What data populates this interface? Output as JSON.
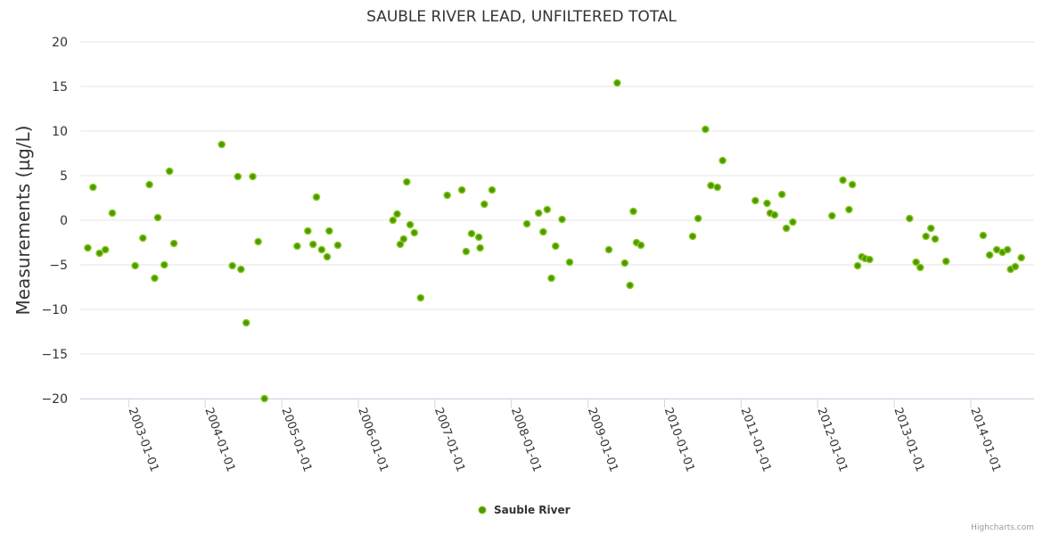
{
  "chart_data": {
    "type": "scatter",
    "title": "SAUBLE RIVER LEAD, UNFILTERED TOTAL",
    "ylabel": "Measurements (µg/L)",
    "xlabel": "",
    "ylim": [
      -20,
      20
    ],
    "yticks": [
      20,
      15,
      10,
      5,
      0,
      -5,
      -10,
      -15,
      -20
    ],
    "ytick_labels": [
      "20",
      "15",
      "10",
      "5",
      "0",
      "−5",
      "−10",
      "−15",
      "−20"
    ],
    "xlim": [
      "2002-05-15",
      "2014-10-30"
    ],
    "xticks": [
      "2003-01-01",
      "2004-01-01",
      "2005-01-01",
      "2006-01-01",
      "2007-01-01",
      "2008-01-01",
      "2009-01-01",
      "2010-01-01",
      "2011-01-01",
      "2012-01-01",
      "2013-01-01",
      "2014-01-01"
    ],
    "grid": true,
    "legend_position": "bottom-center",
    "marker_color": "#4d9900",
    "marker_stroke": "#8ac926",
    "series": [
      {
        "name": "Sauble River",
        "points": [
          {
            "x": "2002-06-20",
            "y": -3.1
          },
          {
            "x": "2002-07-15",
            "y": 3.7
          },
          {
            "x": "2002-08-15",
            "y": -3.7
          },
          {
            "x": "2002-09-12",
            "y": -3.3
          },
          {
            "x": "2002-10-15",
            "y": 0.8
          },
          {
            "x": "2003-02-01",
            "y": -5.1
          },
          {
            "x": "2003-03-10",
            "y": -2.0
          },
          {
            "x": "2003-04-10",
            "y": 4.0
          },
          {
            "x": "2003-05-05",
            "y": -6.5
          },
          {
            "x": "2003-05-20",
            "y": 0.3
          },
          {
            "x": "2003-06-20",
            "y": -5.0
          },
          {
            "x": "2003-07-15",
            "y": 5.5
          },
          {
            "x": "2003-08-05",
            "y": -2.6
          },
          {
            "x": "2004-03-20",
            "y": 8.5
          },
          {
            "x": "2004-05-10",
            "y": -5.1
          },
          {
            "x": "2004-06-05",
            "y": 4.9
          },
          {
            "x": "2004-06-20",
            "y": -5.5
          },
          {
            "x": "2004-07-15",
            "y": -11.5
          },
          {
            "x": "2004-08-15",
            "y": 4.9
          },
          {
            "x": "2004-09-10",
            "y": -2.4
          },
          {
            "x": "2004-10-10",
            "y": -20.0
          },
          {
            "x": "2005-03-15",
            "y": -2.9
          },
          {
            "x": "2005-05-05",
            "y": -1.2
          },
          {
            "x": "2005-05-30",
            "y": -2.7
          },
          {
            "x": "2005-06-15",
            "y": 2.6
          },
          {
            "x": "2005-07-10",
            "y": -3.3
          },
          {
            "x": "2005-08-05",
            "y": -4.1
          },
          {
            "x": "2005-08-15",
            "y": -1.2
          },
          {
            "x": "2005-09-25",
            "y": -2.8
          },
          {
            "x": "2006-06-15",
            "y": 0.0
          },
          {
            "x": "2006-07-05",
            "y": 0.7
          },
          {
            "x": "2006-07-20",
            "y": -2.7
          },
          {
            "x": "2006-08-05",
            "y": -2.1
          },
          {
            "x": "2006-08-20",
            "y": 4.3
          },
          {
            "x": "2006-09-05",
            "y": -0.5
          },
          {
            "x": "2006-09-25",
            "y": -1.4
          },
          {
            "x": "2006-10-25",
            "y": -8.7
          },
          {
            "x": "2007-03-01",
            "y": 2.8
          },
          {
            "x": "2007-05-10",
            "y": 3.4
          },
          {
            "x": "2007-05-30",
            "y": -3.5
          },
          {
            "x": "2007-06-25",
            "y": -1.5
          },
          {
            "x": "2007-07-30",
            "y": -1.9
          },
          {
            "x": "2007-08-05",
            "y": -3.1
          },
          {
            "x": "2007-08-25",
            "y": 1.8
          },
          {
            "x": "2007-10-01",
            "y": 3.4
          },
          {
            "x": "2008-03-15",
            "y": -0.4
          },
          {
            "x": "2008-05-10",
            "y": 0.8
          },
          {
            "x": "2008-06-01",
            "y": -1.3
          },
          {
            "x": "2008-06-20",
            "y": 1.2
          },
          {
            "x": "2008-07-10",
            "y": -6.5
          },
          {
            "x": "2008-07-30",
            "y": -2.9
          },
          {
            "x": "2008-08-30",
            "y": 0.1
          },
          {
            "x": "2008-10-05",
            "y": -4.7
          },
          {
            "x": "2009-04-10",
            "y": -3.3
          },
          {
            "x": "2009-05-20",
            "y": 15.4
          },
          {
            "x": "2009-06-25",
            "y": -4.8
          },
          {
            "x": "2009-07-20",
            "y": -7.3
          },
          {
            "x": "2009-08-05",
            "y": 1.0
          },
          {
            "x": "2009-08-20",
            "y": -2.5
          },
          {
            "x": "2009-09-10",
            "y": -2.8
          },
          {
            "x": "2010-05-15",
            "y": -1.8
          },
          {
            "x": "2010-06-10",
            "y": 0.2
          },
          {
            "x": "2010-07-15",
            "y": 10.2
          },
          {
            "x": "2010-08-10",
            "y": 3.9
          },
          {
            "x": "2010-09-10",
            "y": 3.7
          },
          {
            "x": "2010-10-05",
            "y": 6.7
          },
          {
            "x": "2011-03-10",
            "y": 2.2
          },
          {
            "x": "2011-05-05",
            "y": 1.9
          },
          {
            "x": "2011-05-20",
            "y": 0.8
          },
          {
            "x": "2011-06-10",
            "y": 0.6
          },
          {
            "x": "2011-07-15",
            "y": 2.9
          },
          {
            "x": "2011-08-05",
            "y": -0.9
          },
          {
            "x": "2011-09-05",
            "y": -0.2
          },
          {
            "x": "2012-03-10",
            "y": 0.5
          },
          {
            "x": "2012-05-01",
            "y": 4.5
          },
          {
            "x": "2012-05-30",
            "y": 1.2
          },
          {
            "x": "2012-06-15",
            "y": 4.0
          },
          {
            "x": "2012-07-10",
            "y": -5.1
          },
          {
            "x": "2012-07-30",
            "y": -4.1
          },
          {
            "x": "2012-08-15",
            "y": -4.3
          },
          {
            "x": "2012-09-05",
            "y": -4.4
          },
          {
            "x": "2013-03-15",
            "y": 0.2
          },
          {
            "x": "2013-04-15",
            "y": -4.7
          },
          {
            "x": "2013-05-05",
            "y": -5.3
          },
          {
            "x": "2013-06-01",
            "y": -1.8
          },
          {
            "x": "2013-06-25",
            "y": -0.9
          },
          {
            "x": "2013-07-15",
            "y": -2.1
          },
          {
            "x": "2013-09-05",
            "y": -4.6
          },
          {
            "x": "2014-03-01",
            "y": -1.7
          },
          {
            "x": "2014-04-01",
            "y": -3.9
          },
          {
            "x": "2014-05-05",
            "y": -3.3
          },
          {
            "x": "2014-06-01",
            "y": -3.6
          },
          {
            "x": "2014-06-25",
            "y": -3.3
          },
          {
            "x": "2014-07-10",
            "y": -5.5
          },
          {
            "x": "2014-08-01",
            "y": -5.2
          },
          {
            "x": "2014-08-30",
            "y": -4.2
          }
        ]
      }
    ]
  },
  "credits": "Highcharts.com"
}
